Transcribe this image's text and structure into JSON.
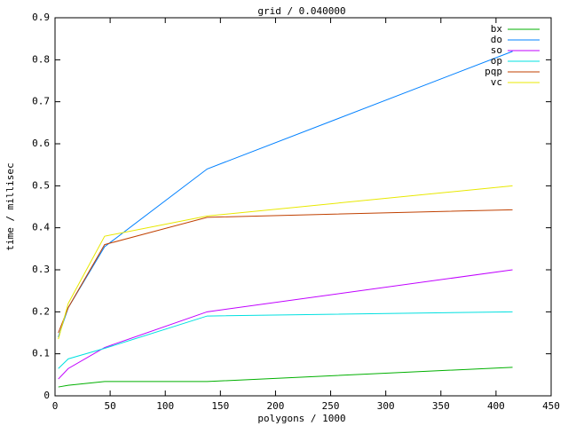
{
  "chart_data": {
    "type": "line",
    "title": "grid / 0.040000",
    "x_label": "polygons / 1000",
    "y_label": "time / millisec",
    "x": [
      3,
      12,
      45,
      138,
      415
    ],
    "series": [
      {
        "name": "bx",
        "color": "#00b000",
        "values": [
          0.021,
          0.025,
          0.034,
          0.034,
          0.068
        ]
      },
      {
        "name": "do",
        "color": "#0080ff",
        "values": [
          0.14,
          0.21,
          0.355,
          0.54,
          0.82
        ]
      },
      {
        "name": "so",
        "color": "#c000ff",
        "values": [
          0.04,
          0.065,
          0.115,
          0.2,
          0.3
        ]
      },
      {
        "name": "op",
        "color": "#00e0e0",
        "values": [
          0.065,
          0.088,
          0.113,
          0.19,
          0.2
        ]
      },
      {
        "name": "pqp",
        "color": "#c04000",
        "values": [
          0.15,
          0.21,
          0.36,
          0.425,
          0.443
        ]
      },
      {
        "name": "vc",
        "color": "#e8e800",
        "values": [
          0.135,
          0.22,
          0.38,
          0.428,
          0.5
        ]
      }
    ],
    "xlim": [
      0,
      450
    ],
    "xticks": [
      0,
      50,
      100,
      150,
      200,
      250,
      300,
      350,
      400,
      450
    ],
    "ylim": [
      0,
      0.9
    ],
    "yticks": [
      0,
      0.1,
      0.2,
      0.3,
      0.4,
      0.5,
      0.6,
      0.7,
      0.8,
      0.9
    ],
    "legend": "top-right"
  }
}
